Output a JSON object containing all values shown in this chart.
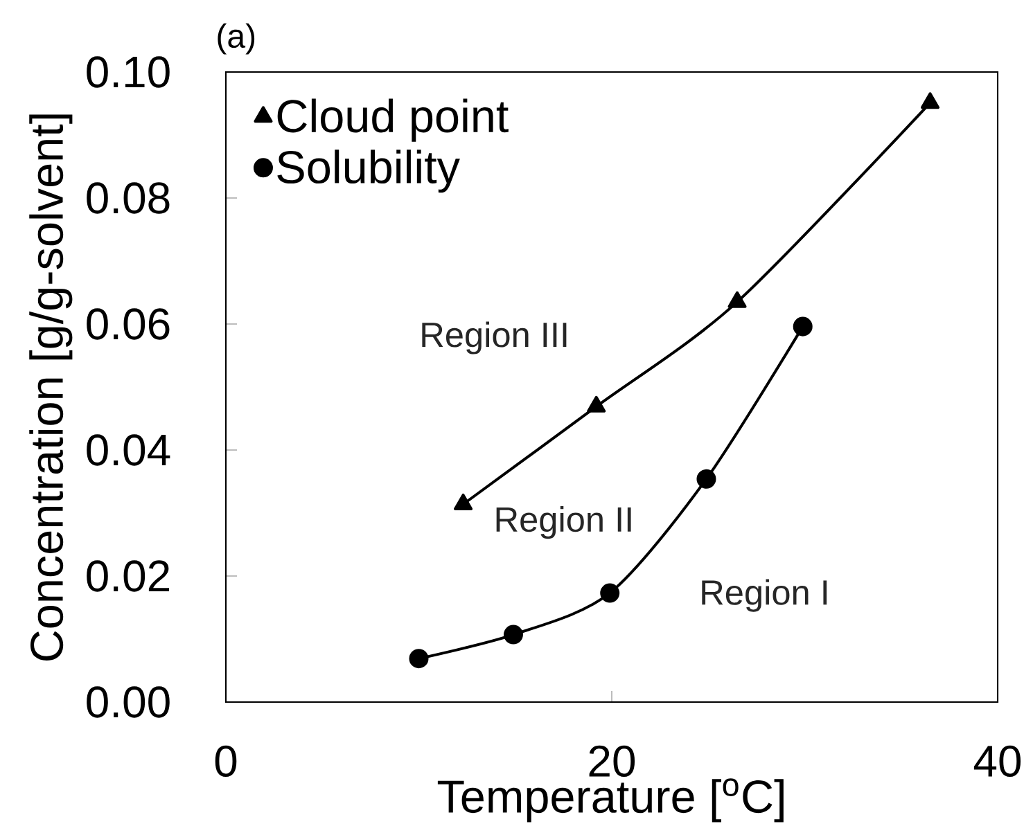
{
  "chart_data": {
    "type": "line",
    "title": "(a)",
    "xlabel": "Temperature [$^{o}$C]",
    "ylabel": "Concentration [g/g-solvent]",
    "series": [
      {
        "name": "Cloud point",
        "color": "#000000",
        "marker": "triangle",
        "x": [
          12.3,
          19.2,
          26.5,
          36.5
        ],
        "values": [
          0.0314,
          0.0469,
          0.0635,
          0.0951
        ]
      },
      {
        "name": "Solubility",
        "color": "#000000",
        "marker": "circle",
        "x": [
          10.0,
          14.9,
          19.9,
          24.9,
          29.9
        ],
        "values": [
          0.0069,
          0.0107,
          0.0173,
          0.0354,
          0.0596
        ]
      }
    ],
    "xlim": [
      0,
      40
    ],
    "xticks": [
      0,
      20,
      40
    ],
    "ylim": [
      0,
      0.1
    ],
    "yticks": [
      {
        "value": 0,
        "label": "0.00"
      },
      {
        "value": 0.02,
        "label": "0.02"
      },
      {
        "value": 0.04,
        "label": "0.04"
      },
      {
        "value": 0.06,
        "label": "0.06"
      },
      {
        "value": 0.08,
        "label": "0.08"
      },
      {
        "value": 0.1,
        "label": "0.10"
      }
    ],
    "annotations": [
      "Region III",
      "Region II",
      "Region I"
    ],
    "legend": "top left",
    "grid": false,
    "line_style": "solid"
  }
}
